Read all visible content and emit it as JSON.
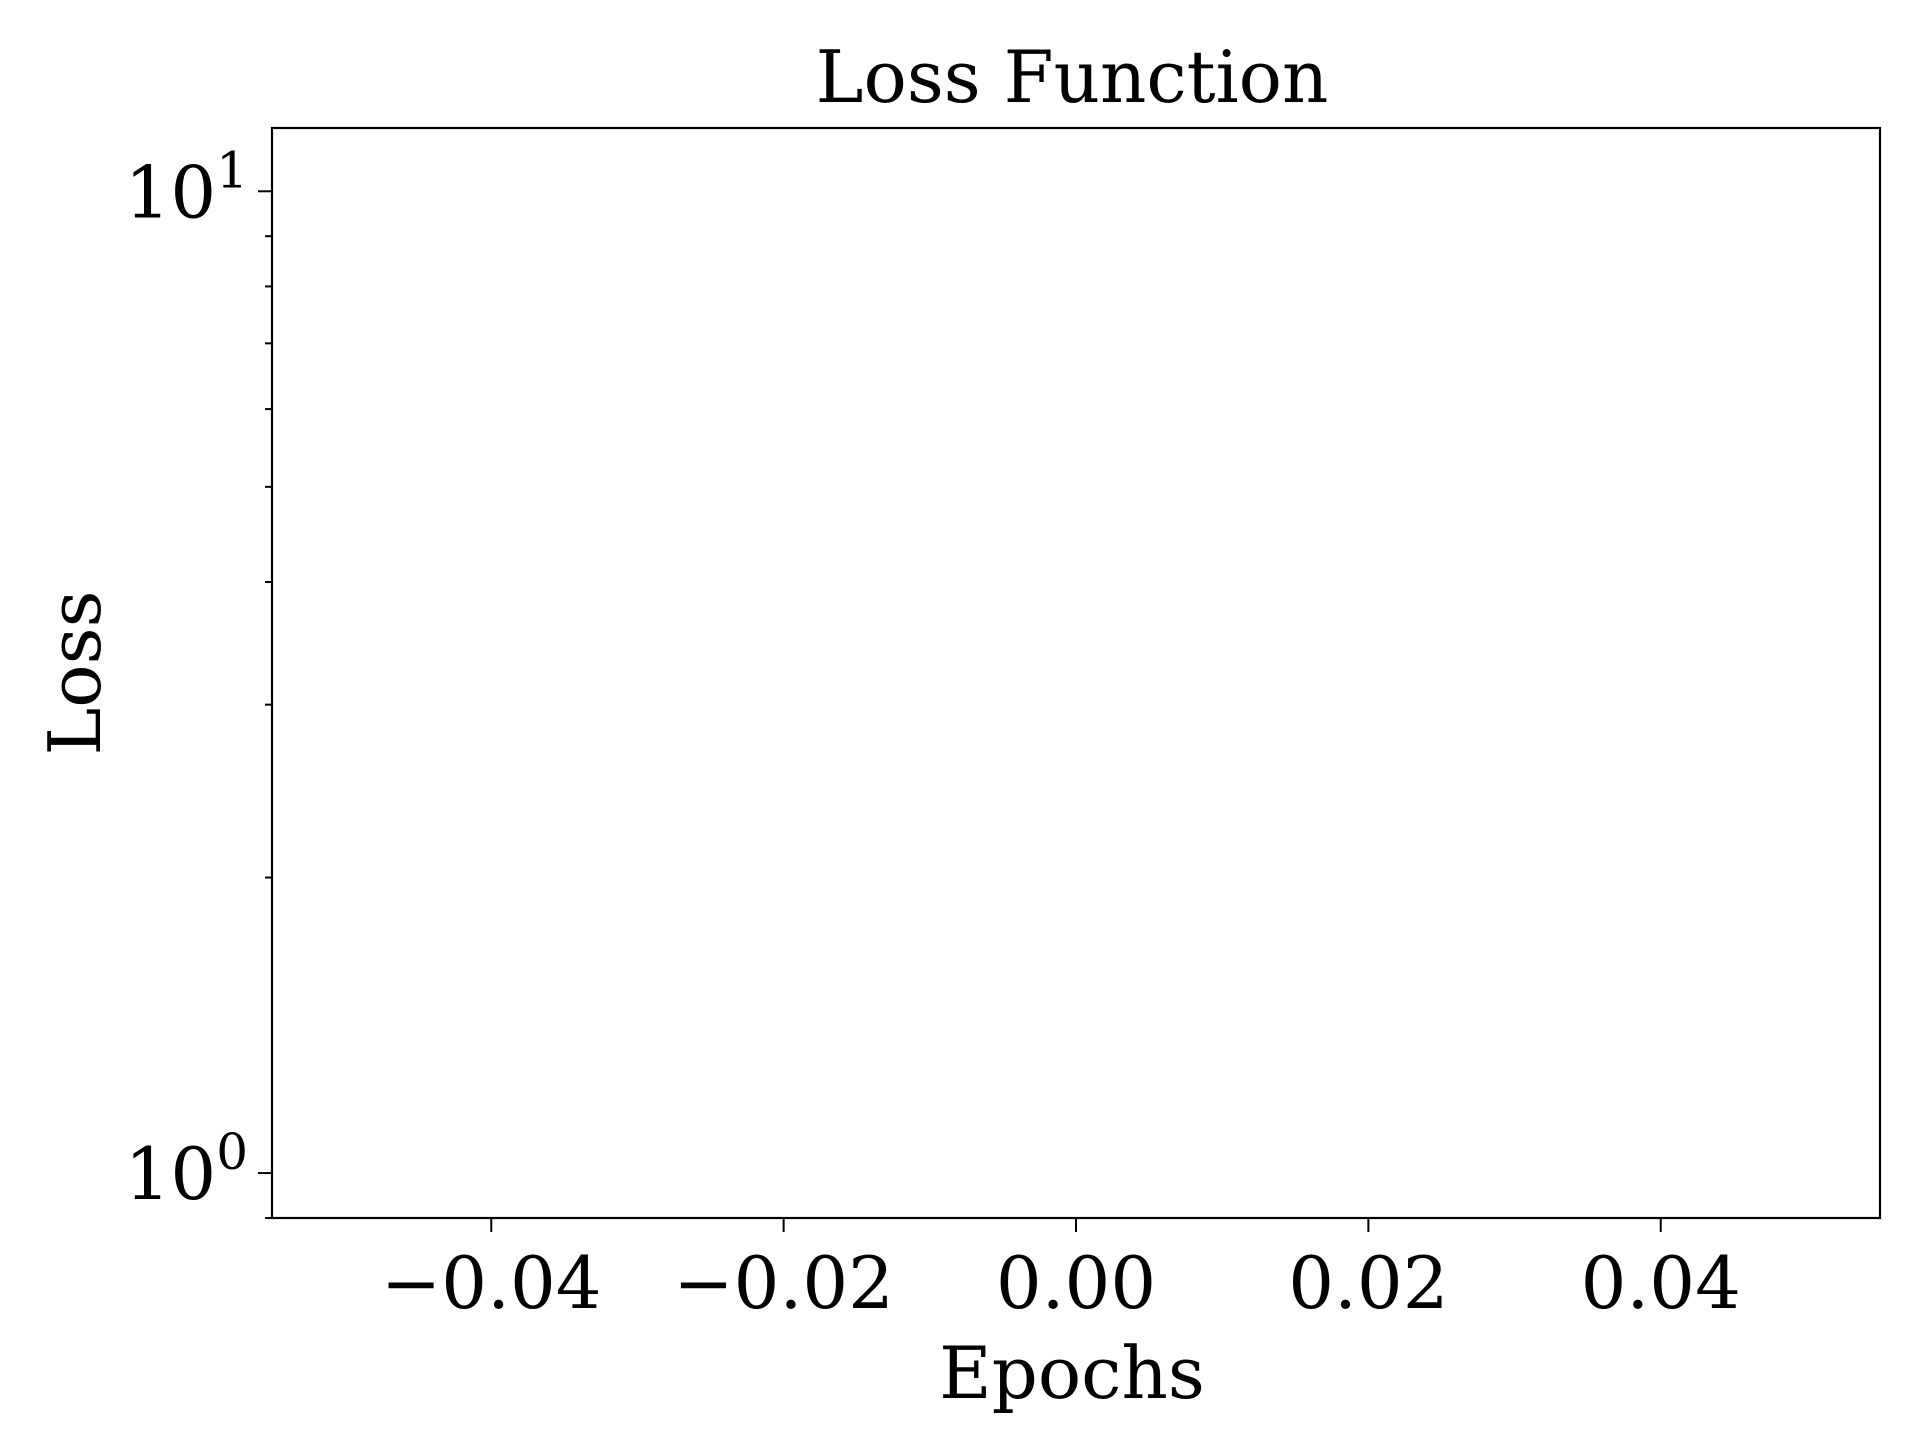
{
  "chart_data": {
    "type": "line",
    "title": "Loss Function",
    "xlabel": "Epochs",
    "ylabel": "Loss",
    "xlim": [
      -0.055,
      0.055
    ],
    "ylim": [
      0.9,
      11.6
    ],
    "yscale": "log",
    "grid": false,
    "x_ticks": [
      {
        "value": -0.04,
        "label": "−0.04"
      },
      {
        "value": -0.02,
        "label": "−0.02"
      },
      {
        "value": 0.0,
        "label": "0.00"
      },
      {
        "value": 0.02,
        "label": "0.02"
      },
      {
        "value": 0.04,
        "label": "0.04"
      }
    ],
    "y_ticks": [
      {
        "value": 1,
        "base": "10",
        "exponent": "0"
      },
      {
        "value": 10,
        "base": "10",
        "exponent": "1"
      }
    ],
    "y_minor_ticks": [
      0.9,
      2,
      3,
      4,
      5,
      6,
      7,
      8,
      9
    ],
    "series": []
  }
}
